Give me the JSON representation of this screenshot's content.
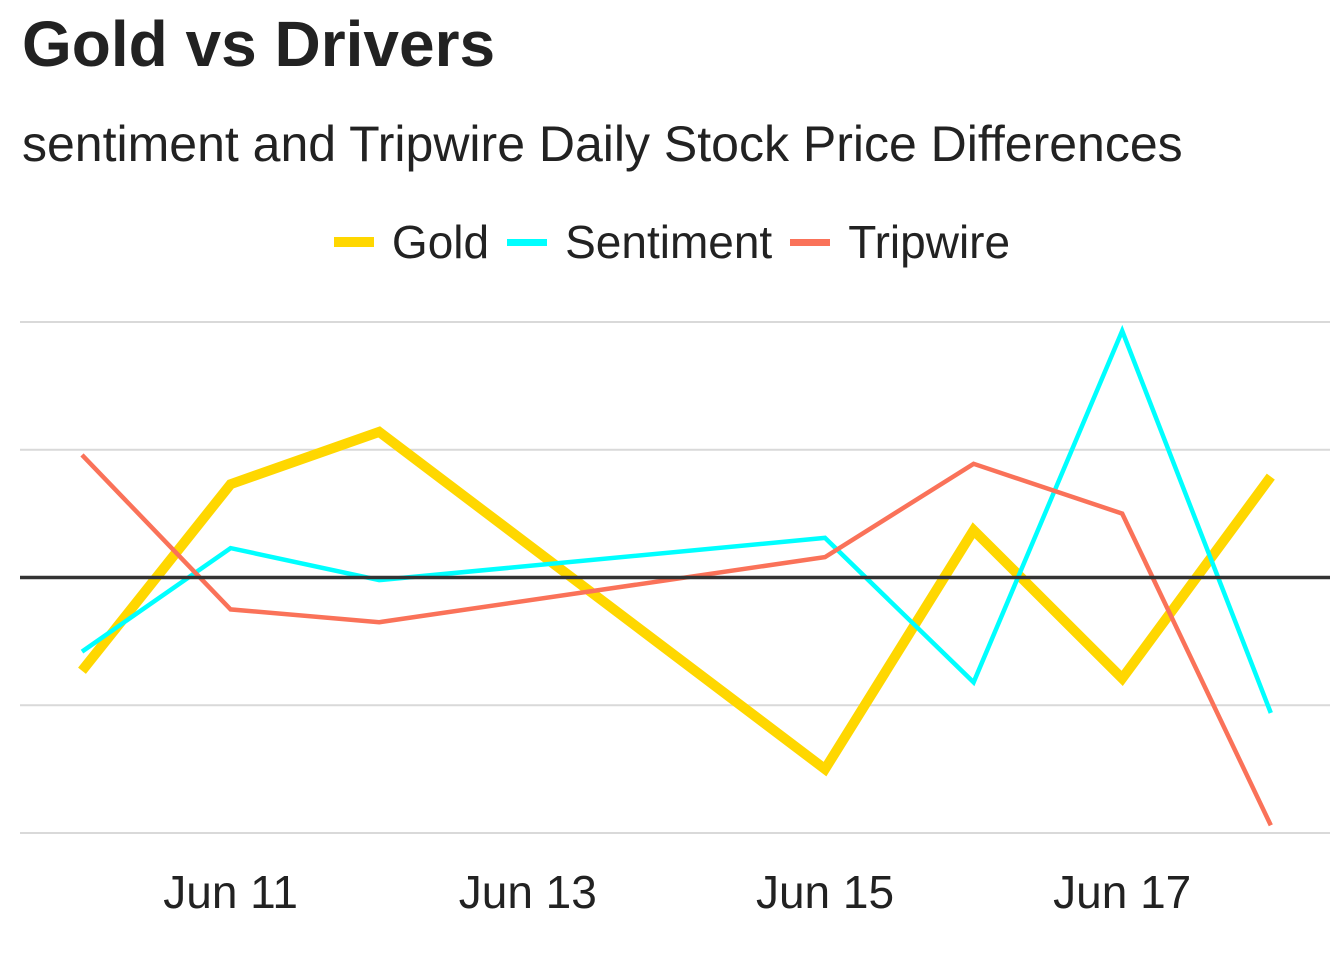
{
  "chart_data": {
    "type": "line",
    "title": "Gold vs Drivers",
    "subtitle": "sentiment and Tripwire Daily Stock Price Differences",
    "x": [
      "2019-06-10",
      "2019-06-11",
      "2019-06-12",
      "2019-06-13",
      "2019-06-14",
      "2019-06-15",
      "2019-06-16",
      "2019-06-17",
      "2019-06-18"
    ],
    "x_tick_labels": [
      "Jun 11",
      "Jun 13",
      "Jun 15",
      "Jun 17"
    ],
    "x_tick_dates": [
      "2019-06-11",
      "2019-06-13",
      "2019-06-15",
      "2019-06-17"
    ],
    "xlim": [
      "2019-06-09.6",
      "2019-06-18.4"
    ],
    "ylim": [
      -2.0,
      2.0
    ],
    "y_gridlines": [
      -2,
      -1,
      0,
      1,
      2
    ],
    "zero_line": true,
    "y_tick_labels_shown": false,
    "legend_position": "top",
    "series": [
      {
        "name": "Gold",
        "color": "#FFD700",
        "line_width": "thick",
        "values": [
          -0.73,
          0.73,
          1.14,
          null,
          null,
          -1.5,
          0.37,
          -0.79,
          0.79
        ]
      },
      {
        "name": "Sentiment",
        "color": "#00FFFF",
        "line_width": "medium",
        "values": [
          -0.58,
          0.23,
          -0.02,
          null,
          null,
          0.31,
          -0.82,
          1.93,
          -1.06
        ]
      },
      {
        "name": "Tripwire",
        "color": "#FA7259",
        "line_width": "medium",
        "values": [
          0.96,
          -0.25,
          -0.35,
          null,
          null,
          0.16,
          0.89,
          0.5,
          -1.94
        ]
      }
    ]
  }
}
